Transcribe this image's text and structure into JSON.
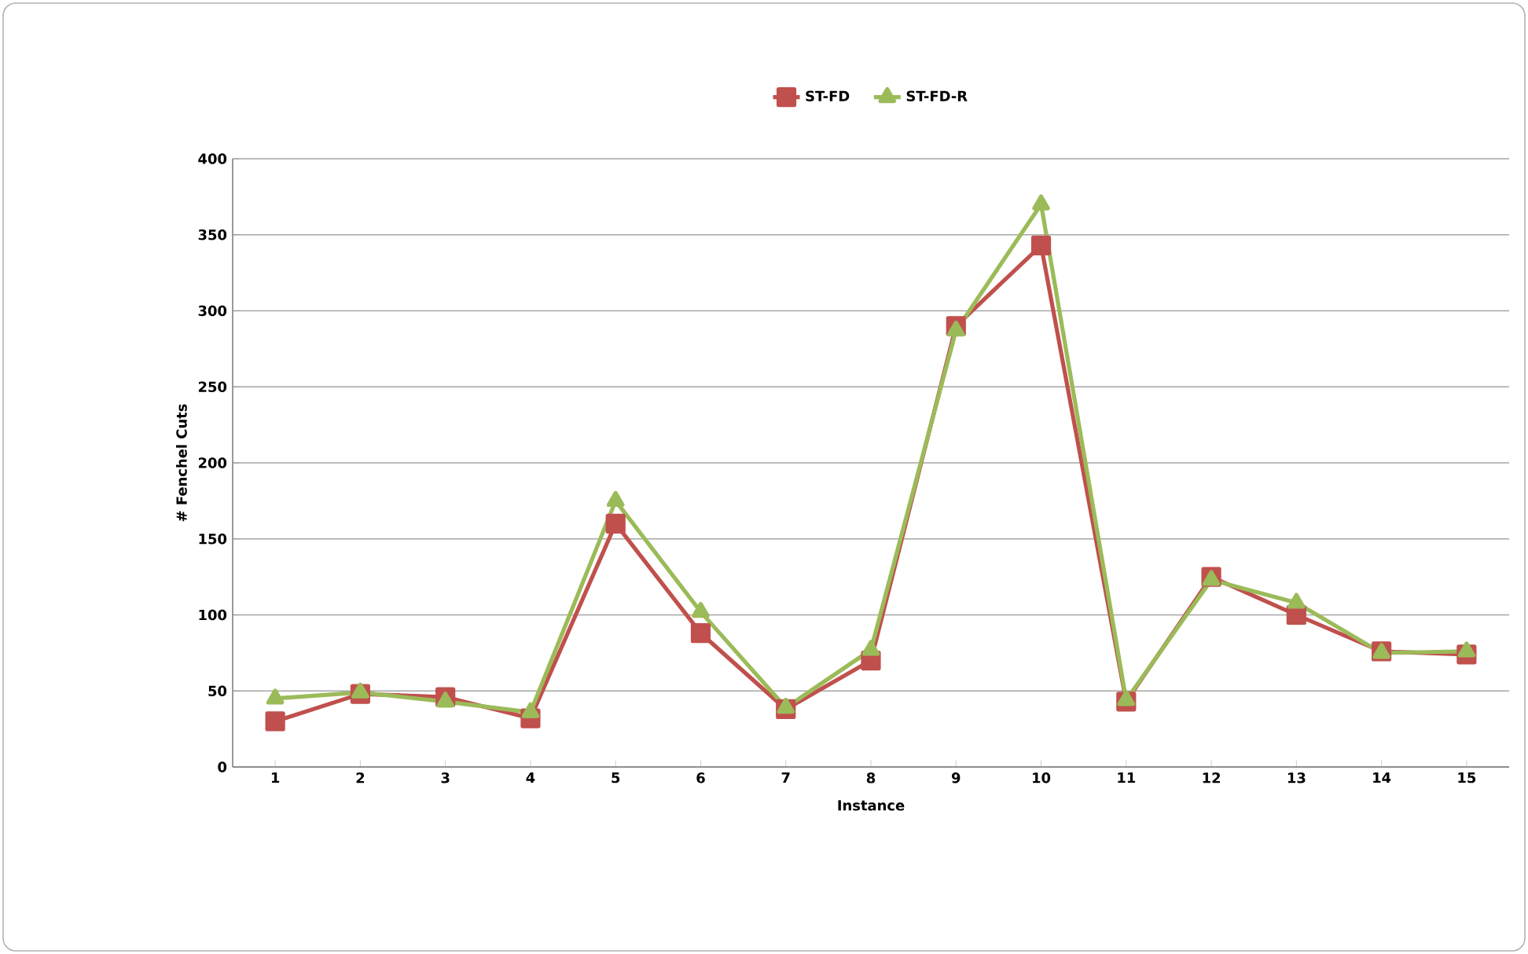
{
  "chart_data": {
    "type": "line",
    "xlabel": "Instance",
    "ylabel": "# Fenchel Cuts",
    "categories": [
      "1",
      "2",
      "3",
      "4",
      "5",
      "6",
      "7",
      "8",
      "9",
      "10",
      "11",
      "12",
      "13",
      "14",
      "15"
    ],
    "series": [
      {
        "name": "ST-FD",
        "color": "#c0504d",
        "marker": "square",
        "values": [
          30,
          48,
          46,
          32,
          160,
          88,
          38,
          70,
          290,
          343,
          43,
          125,
          100,
          76,
          74
        ]
      },
      {
        "name": "ST-FD-R",
        "color": "#9bbb59",
        "marker": "triangle",
        "values": [
          45,
          49,
          43,
          36,
          175,
          102,
          39,
          77,
          287,
          370,
          44,
          123,
          108,
          75,
          76
        ]
      }
    ],
    "ylim": [
      0,
      400
    ],
    "yticks": [
      0,
      50,
      100,
      150,
      200,
      250,
      300,
      350,
      400
    ],
    "grid": "y",
    "legend": "top",
    "line_style": "solid"
  }
}
